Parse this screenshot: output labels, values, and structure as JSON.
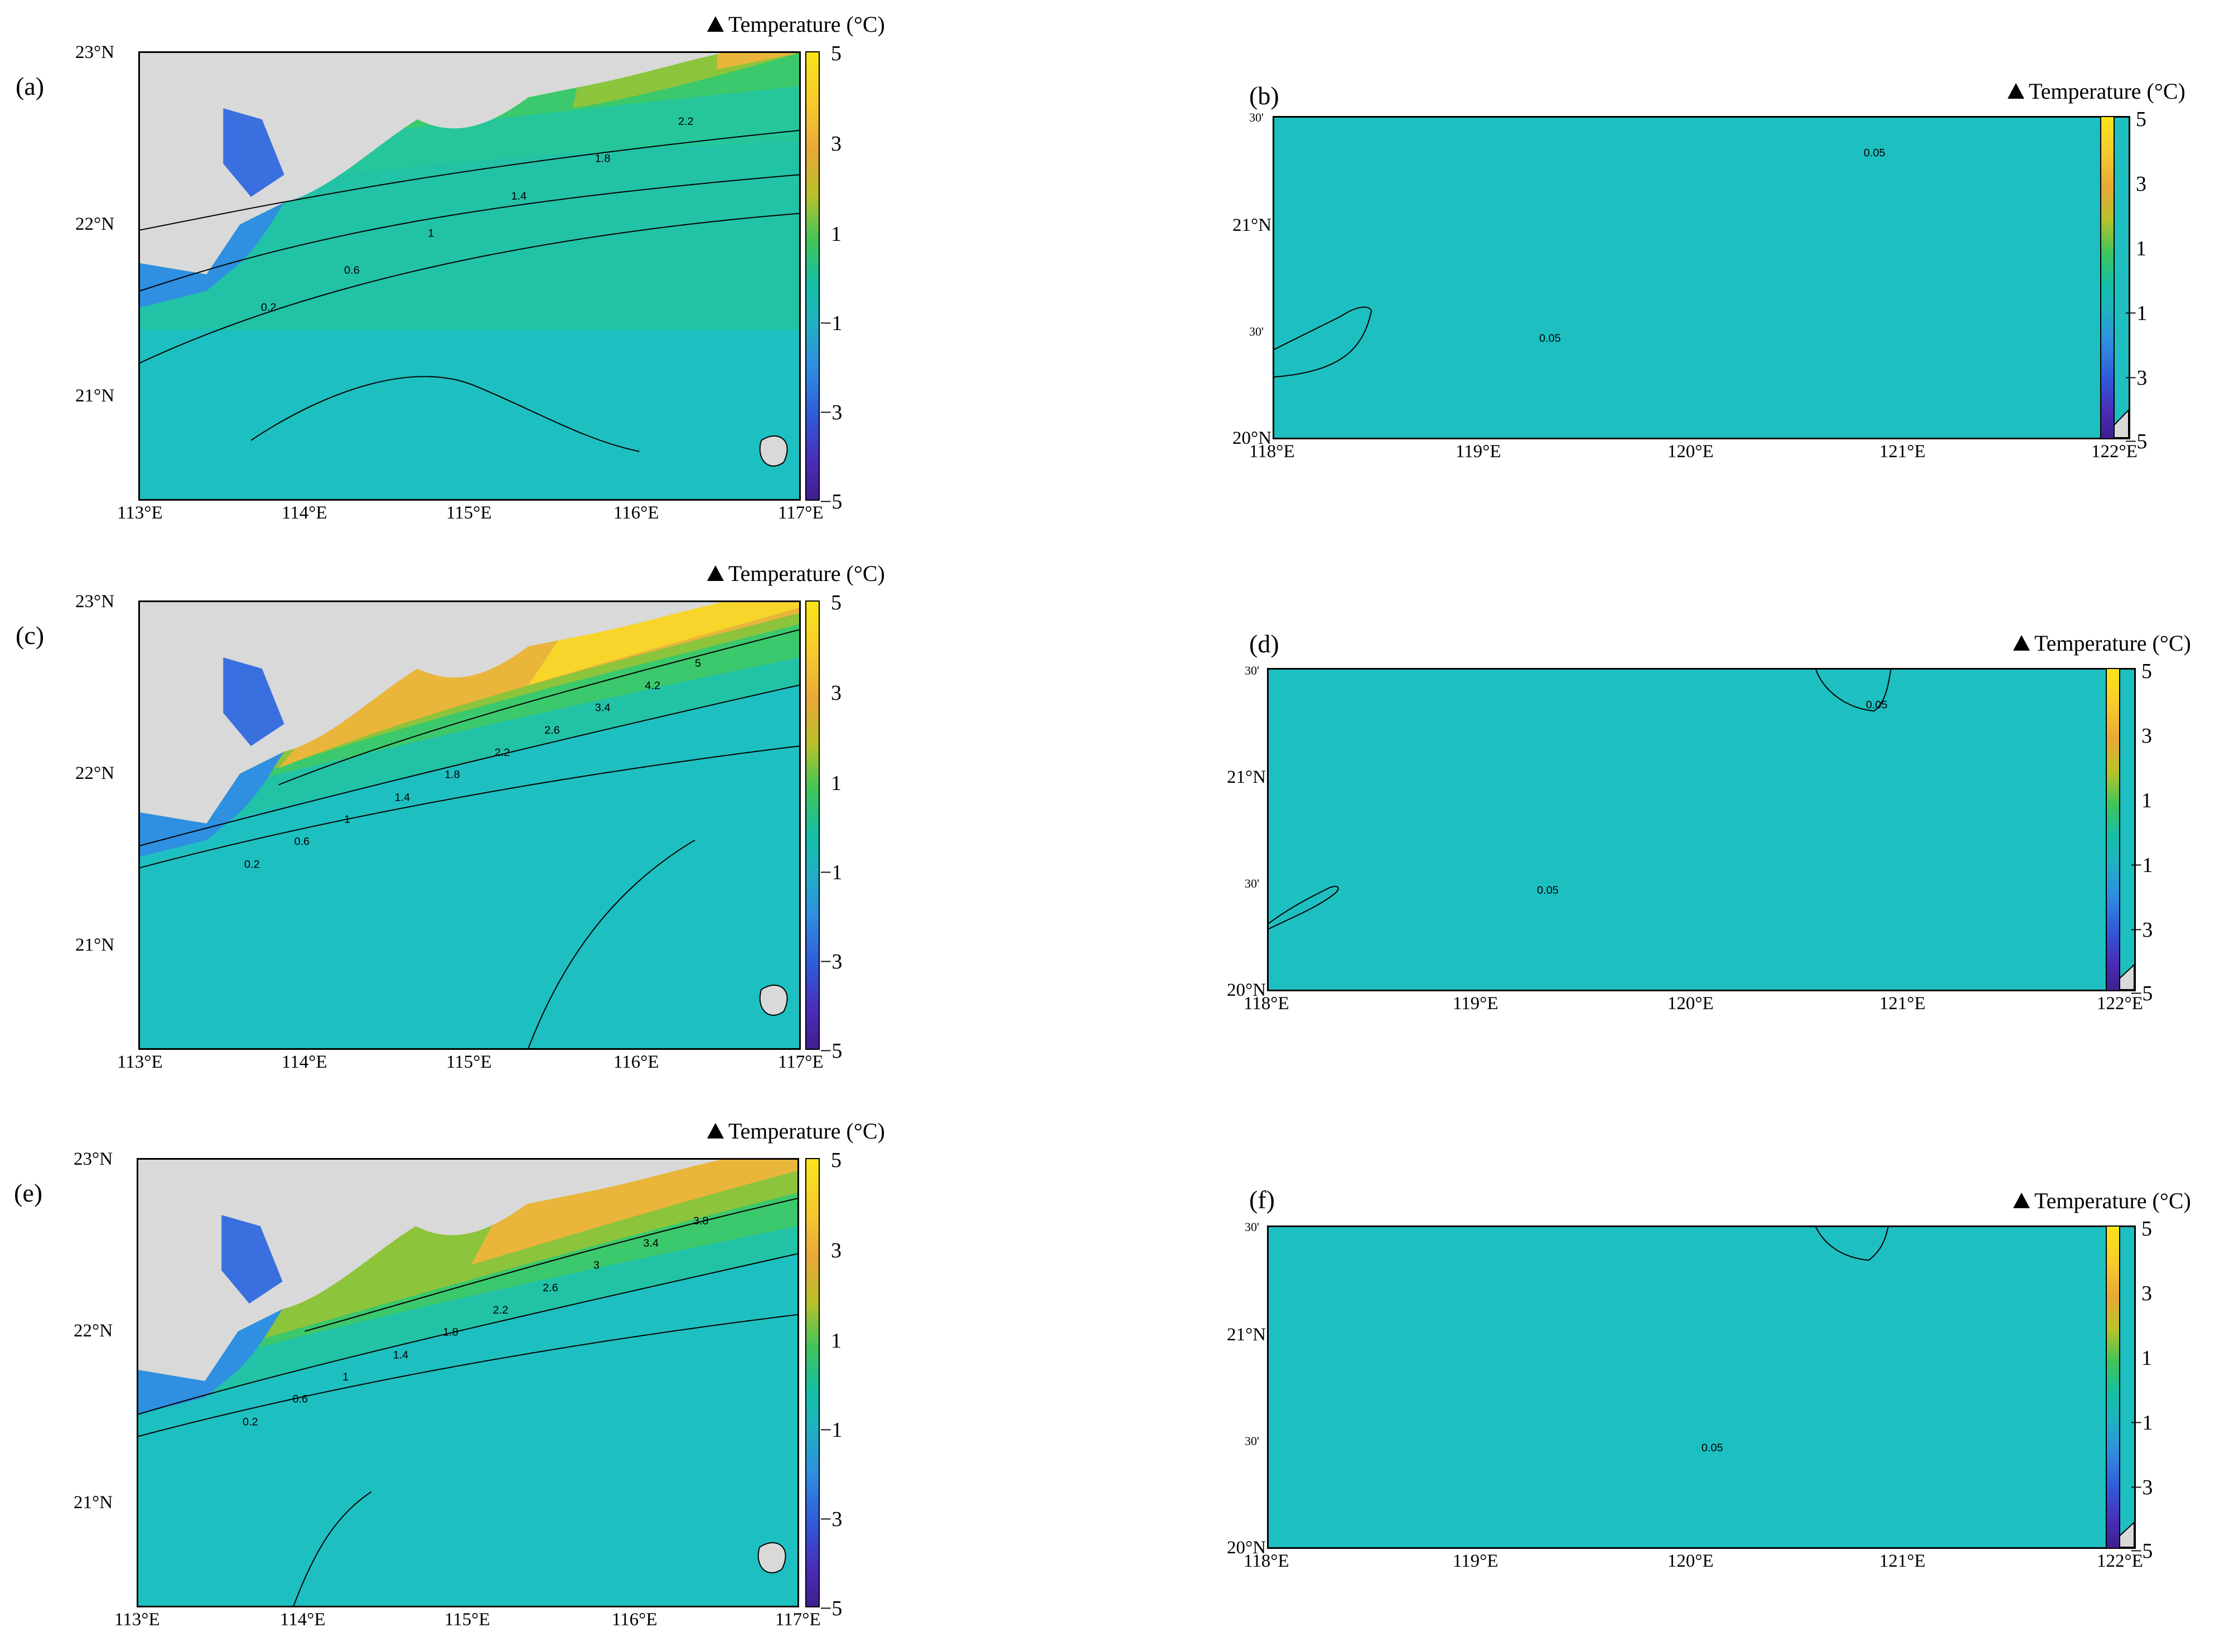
{
  "colorbar": {
    "title": "Temperature (°C)",
    "ticks": [
      "5",
      "3",
      "1",
      "−1",
      "−3",
      "−5"
    ],
    "range": [
      -5,
      5
    ]
  },
  "panels": [
    {
      "id": "a",
      "label": "(a)",
      "lat_ticks": [
        "23°N",
        "22°N",
        "21°N"
      ],
      "lon_ticks": [
        "113°E",
        "114°E",
        "115°E",
        "116°E",
        "117°E"
      ],
      "contour_labels": [
        "0.2",
        "0.6",
        "1",
        "1.4",
        "1.8",
        "2.2"
      ]
    },
    {
      "id": "b",
      "label": "(b)",
      "lat_ticks": [
        "30'",
        "21°N",
        "30'",
        "20°N"
      ],
      "lon_ticks": [
        "118°E",
        "119°E",
        "120°E",
        "121°E",
        "122°E"
      ],
      "contour_labels": [
        "0.05",
        "0.05"
      ]
    },
    {
      "id": "c",
      "label": "(c)",
      "lat_ticks": [
        "23°N",
        "22°N",
        "21°N"
      ],
      "lon_ticks": [
        "113°E",
        "114°E",
        "115°E",
        "116°E",
        "117°E"
      ],
      "contour_labels": [
        "0.2",
        "0.6",
        "1",
        "1.4",
        "1.8",
        "2.2",
        "2.6",
        "3.4",
        "4.2",
        "5"
      ]
    },
    {
      "id": "d",
      "label": "(d)",
      "lat_ticks": [
        "30'",
        "21°N",
        "30'",
        "20°N"
      ],
      "lon_ticks": [
        "118°E",
        "119°E",
        "120°E",
        "121°E",
        "122°E"
      ],
      "contour_labels": [
        "0.05",
        "0.05"
      ]
    },
    {
      "id": "e",
      "label": "(e)",
      "lat_ticks": [
        "23°N",
        "22°N",
        "21°N"
      ],
      "lon_ticks": [
        "113°E",
        "114°E",
        "115°E",
        "116°E",
        "117°E"
      ],
      "contour_labels": [
        "0.2",
        "0.6",
        "1",
        "1.4",
        "1.8",
        "2.2",
        "2.6",
        "3",
        "3.4",
        "3.8"
      ]
    },
    {
      "id": "f",
      "label": "(f)",
      "lat_ticks": [
        "30'",
        "21°N",
        "30'",
        "20°N"
      ],
      "lon_ticks": [
        "118°E",
        "119°E",
        "120°E",
        "121°E",
        "122°E"
      ],
      "contour_labels": [
        "0.05"
      ]
    }
  ],
  "colors": {
    "land": "#d9d9d9",
    "sea_base": "#1ebfc0",
    "contour_line": "#000000"
  }
}
